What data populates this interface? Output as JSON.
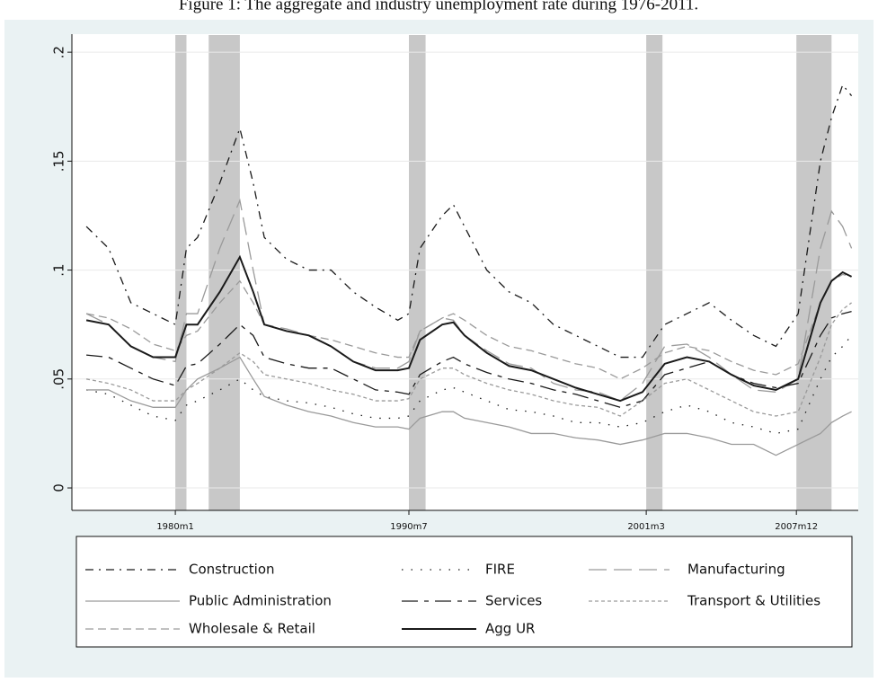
{
  "chart_data": {
    "type": "line",
    "title": "Figure 1: The aggregate and industry unemployment rate during 1976-2011.",
    "x": [
      1976,
      1977,
      1978,
      1979,
      1980,
      1980.5,
      1981,
      1982,
      1982.9,
      1983.5,
      1984,
      1985,
      1986,
      1987,
      1988,
      1989,
      1990,
      1990.5,
      1991,
      1992,
      1992.5,
      1993,
      1994,
      1995,
      1996,
      1997,
      1998,
      1999,
      2000,
      2001,
      2002,
      2003,
      2004,
      2005,
      2006,
      2007,
      2008,
      2009,
      2009.5,
      2010,
      2010.4
    ],
    "series": [
      {
        "name": "Construction",
        "color": "#1a1a1a",
        "dash": "9 6 2 6",
        "values": [
          0.12,
          0.11,
          0.085,
          0.08,
          0.075,
          0.11,
          0.115,
          0.14,
          0.165,
          0.14,
          0.115,
          0.105,
          0.1,
          0.1,
          0.09,
          0.083,
          0.077,
          0.08,
          0.11,
          0.125,
          0.13,
          0.12,
          0.1,
          0.09,
          0.085,
          0.075,
          0.07,
          0.065,
          0.06,
          0.06,
          0.075,
          0.08,
          0.085,
          0.077,
          0.07,
          0.065,
          0.08,
          0.15,
          0.17,
          0.185,
          0.18
        ]
      },
      {
        "name": "FIRE",
        "color": "#1a1a1a",
        "dash": "1.5 9",
        "values": [
          0.045,
          0.043,
          0.038,
          0.033,
          0.031,
          0.038,
          0.04,
          0.045,
          0.05,
          0.045,
          0.042,
          0.04,
          0.039,
          0.037,
          0.034,
          0.032,
          0.032,
          0.033,
          0.04,
          0.045,
          0.046,
          0.044,
          0.04,
          0.036,
          0.035,
          0.033,
          0.03,
          0.03,
          0.028,
          0.03,
          0.035,
          0.038,
          0.035,
          0.03,
          0.028,
          0.025,
          0.027,
          0.05,
          0.06,
          0.065,
          0.07
        ]
      },
      {
        "name": "Manufacturing",
        "color": "#9a9a9a",
        "dash": "20 8",
        "values": [
          0.08,
          0.075,
          0.065,
          0.06,
          0.058,
          0.08,
          0.08,
          0.11,
          0.132,
          0.1,
          0.075,
          0.073,
          0.07,
          0.065,
          0.058,
          0.055,
          0.055,
          0.058,
          0.072,
          0.078,
          0.077,
          0.07,
          0.063,
          0.057,
          0.055,
          0.048,
          0.045,
          0.044,
          0.04,
          0.048,
          0.065,
          0.066,
          0.06,
          0.052,
          0.045,
          0.044,
          0.05,
          0.11,
          0.127,
          0.12,
          0.11
        ]
      },
      {
        "name": "Public Administration",
        "color": "#9a9a9a",
        "dash": "none",
        "values": [
          0.045,
          0.045,
          0.04,
          0.037,
          0.037,
          0.045,
          0.05,
          0.055,
          0.06,
          0.05,
          0.042,
          0.038,
          0.035,
          0.033,
          0.03,
          0.028,
          0.028,
          0.027,
          0.032,
          0.035,
          0.035,
          0.032,
          0.03,
          0.028,
          0.025,
          0.025,
          0.023,
          0.022,
          0.02,
          0.022,
          0.025,
          0.025,
          0.023,
          0.02,
          0.02,
          0.015,
          0.02,
          0.025,
          0.03,
          0.033,
          0.035
        ]
      },
      {
        "name": "Services",
        "color": "#1a1a1a",
        "dash": "18 7 5 7",
        "values": [
          0.061,
          0.06,
          0.055,
          0.05,
          0.047,
          0.056,
          0.057,
          0.066,
          0.075,
          0.07,
          0.06,
          0.057,
          0.055,
          0.055,
          0.05,
          0.045,
          0.044,
          0.043,
          0.052,
          0.058,
          0.06,
          0.057,
          0.053,
          0.05,
          0.048,
          0.045,
          0.043,
          0.04,
          0.037,
          0.04,
          0.052,
          0.055,
          0.058,
          0.052,
          0.048,
          0.046,
          0.048,
          0.07,
          0.078,
          0.08,
          0.081
        ]
      },
      {
        "name": "Transport & Utilities",
        "color": "#9a9a9a",
        "dash": "4 3",
        "values": [
          0.05,
          0.048,
          0.045,
          0.04,
          0.04,
          0.045,
          0.048,
          0.055,
          0.062,
          0.058,
          0.052,
          0.05,
          0.048,
          0.045,
          0.043,
          0.04,
          0.04,
          0.041,
          0.05,
          0.055,
          0.055,
          0.052,
          0.048,
          0.045,
          0.043,
          0.04,
          0.038,
          0.037,
          0.033,
          0.04,
          0.048,
          0.05,
          0.045,
          0.04,
          0.035,
          0.033,
          0.035,
          0.06,
          0.075,
          0.082,
          0.085
        ]
      },
      {
        "name": "Wholesale & Retail",
        "color": "#9a9a9a",
        "dash": "9 5",
        "values": [
          0.08,
          0.078,
          0.073,
          0.066,
          0.063,
          0.07,
          0.072,
          0.085,
          0.095,
          0.085,
          0.075,
          0.072,
          0.07,
          0.068,
          0.065,
          0.062,
          0.06,
          0.06,
          0.072,
          0.078,
          0.08,
          0.077,
          0.07,
          0.065,
          0.063,
          0.06,
          0.057,
          0.055,
          0.05,
          0.055,
          0.062,
          0.065,
          0.063,
          0.058,
          0.054,
          0.052,
          0.057,
          0.085,
          0.095,
          0.098,
          0.097
        ]
      },
      {
        "name": "Agg UR",
        "color": "#1a1a1a",
        "dash": "none",
        "values": [
          0.077,
          0.075,
          0.065,
          0.06,
          0.06,
          0.075,
          0.075,
          0.09,
          0.106,
          0.09,
          0.075,
          0.072,
          0.07,
          0.065,
          0.058,
          0.054,
          0.054,
          0.055,
          0.068,
          0.075,
          0.076,
          0.07,
          0.062,
          0.056,
          0.054,
          0.05,
          0.046,
          0.043,
          0.04,
          0.044,
          0.057,
          0.06,
          0.058,
          0.052,
          0.047,
          0.045,
          0.05,
          0.085,
          0.095,
          0.099,
          0.097
        ]
      }
    ],
    "shaded_periods": [
      [
        1980,
        1980.5
      ],
      [
        1981.5,
        1982.9
      ],
      [
        1990.5,
        1991.25
      ],
      [
        2001.17,
        2001.9
      ],
      [
        2007.92,
        2009.5
      ]
    ],
    "shade_color": "#c8c8c8",
    "xlim": [
      1975.35,
      2010.7
    ],
    "xticks": [
      {
        "value": 1980,
        "label": "1980m1"
      },
      {
        "value": 1990.5,
        "label": "1990m7"
      },
      {
        "value": 2001.17,
        "label": "2001m3"
      },
      {
        "value": 2007.92,
        "label": "2007m12"
      }
    ],
    "ylim": [
      -0.0103,
      0.2083
    ],
    "yticks": [
      {
        "value": 0,
        "label": "0"
      },
      {
        "value": 0.05,
        "label": ".05"
      },
      {
        "value": 0.1,
        "label": ".1"
      },
      {
        "value": 0.15,
        "label": ".15"
      },
      {
        "value": 0.2,
        "label": ".2"
      }
    ],
    "grid": true
  }
}
